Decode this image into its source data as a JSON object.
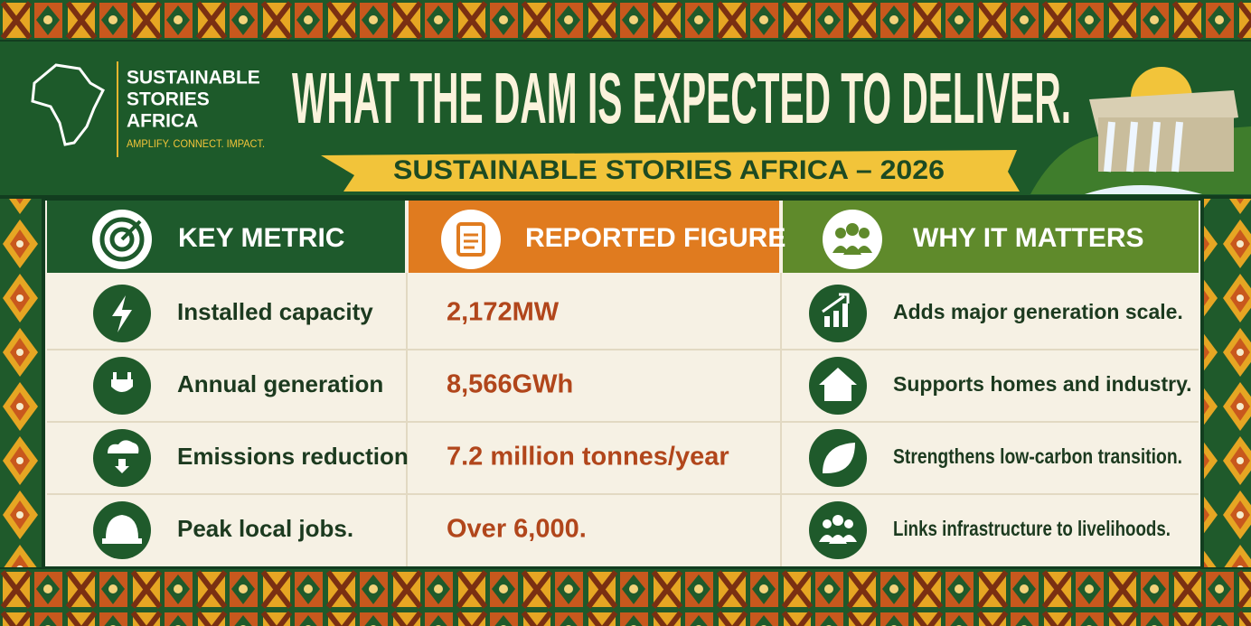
{
  "logo": {
    "lines": [
      "SUSTAINABLE",
      "STORIES",
      "AFRICA"
    ],
    "tagline": "AMPLIFY. CONNECT. IMPACT."
  },
  "header": {
    "title": "WHAT THE DAM IS EXPECTED TO DELIVER.",
    "subtitle": "SUSTAINABLE STORIES AFRICA – 2026"
  },
  "table": {
    "columns": [
      "KEY METRIC",
      "REPORTED FIGURE",
      "WHY IT MATTERS"
    ],
    "rows": [
      [
        "Installed capacity",
        "2,172MW",
        "Adds major generation scale."
      ],
      [
        "Annual generation",
        "8,566GWh",
        "Supports homes and industry."
      ],
      [
        "Emissions reduction",
        "7.2 million tonnes/year",
        "Strengthens low-carbon transition."
      ],
      [
        "Peak local jobs.",
        "Over 6,000.",
        "Links infrastructure to livelihoods."
      ]
    ]
  }
}
